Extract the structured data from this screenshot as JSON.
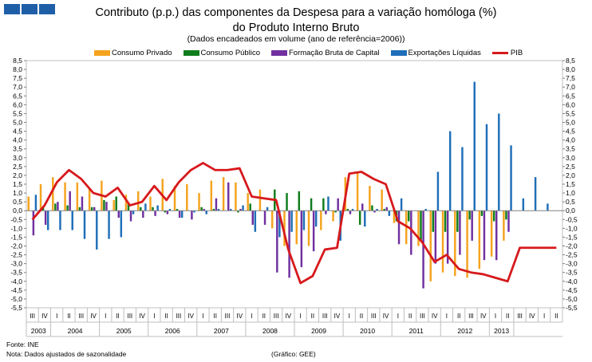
{
  "header": {
    "title_line1": "Contributo (p.p.) das componentes da Despesa para a variação homóloga  (%)",
    "title_line2": "do Produto Interno Bruto",
    "subtitle": "(Dados encadeados em volume  (ano de referência=2006))"
  },
  "footer": {
    "source": "Fonte:  INE",
    "note": "Nota:  Dados  ajustados  de sazonalidade",
    "credit": "(Gráfico:  GEE)"
  },
  "chart_data": {
    "type": "bar",
    "title": "Contributo (p.p.) das componentes da Despesa para a variação homóloga  (%)",
    "ylim": [
      -5.5,
      8.5
    ],
    "yticks": [
      "8,5",
      "8,0",
      "7,5",
      "7,0",
      "6,5",
      "6,0",
      "5,5",
      "5,0",
      "4,5",
      "4,0",
      "3,5",
      "3,0",
      "2,5",
      "2,0",
      "1,5",
      "1,0",
      "0,5",
      "0,0",
      "-0,5",
      "-1,0",
      "-1,5",
      "-2,0",
      "-2,5",
      "-3,0",
      "-3,5",
      "-4,0",
      "-4,5",
      "-5,0",
      "-5,5"
    ],
    "categories": [
      "III",
      "IV",
      "I",
      "II",
      "III",
      "IV",
      "I",
      "II",
      "III",
      "IV",
      "I",
      "II",
      "III",
      "IV",
      "I",
      "II",
      "III",
      "IV",
      "I",
      "II",
      "III",
      "IV",
      "I",
      "II",
      "III",
      "IV",
      "I",
      "II",
      "III",
      "IV",
      "I",
      "II",
      "III",
      "IV",
      "I",
      "II",
      "III",
      "IV",
      "I",
      "II",
      "III",
      "IV",
      "I",
      "II"
    ],
    "years": [
      {
        "label": "2003",
        "quarters": 2
      },
      {
        "label": "2004",
        "quarters": 4
      },
      {
        "label": "2005",
        "quarters": 4
      },
      {
        "label": "2006",
        "quarters": 4
      },
      {
        "label": "2007",
        "quarters": 4
      },
      {
        "label": "2008",
        "quarters": 4
      },
      {
        "label": "2009",
        "quarters": 4
      },
      {
        "label": "2010",
        "quarters": 4
      },
      {
        "label": "2011",
        "quarters": 4
      },
      {
        "label": "2012",
        "quarters": 4
      },
      {
        "label": "2013",
        "quarters": 2
      }
    ],
    "series": [
      {
        "name": "Consumo Privado",
        "color": "#f5a31e",
        "values": [
          0.8,
          1.5,
          1.9,
          1.6,
          1.6,
          1.3,
          1.7,
          0.6,
          0.9,
          1.1,
          0.8,
          1.8,
          1.4,
          1.5,
          1.0,
          1.7,
          1.9,
          1.6,
          1.0,
          1.2,
          -1.0,
          -2.0,
          -1.9,
          -2.0,
          -1.1,
          -0.6,
          1.9,
          2.2,
          1.4,
          1.2,
          -0.7,
          -1.9,
          -2.0,
          -4.0,
          -3.5,
          -3.7,
          -3.8,
          -3.3,
          -2.6,
          -1.7,
          0.0,
          0.0,
          0.0,
          0.0
        ]
      },
      {
        "name": "Consumo Público",
        "color": "#0f7d1c",
        "values": [
          0.0,
          0.2,
          0.4,
          0.3,
          0.2,
          0.2,
          0.6,
          0.8,
          0.4,
          0.2,
          0.2,
          -0.1,
          0.1,
          0.0,
          0.2,
          0.1,
          0.0,
          -0.1,
          0.4,
          0.0,
          1.2,
          1.0,
          1.1,
          0.7,
          0.7,
          -0.1,
          0.1,
          -0.8,
          0.3,
          0.1,
          -0.6,
          -0.6,
          -1.7,
          -1.2,
          -1.2,
          -1.2,
          -0.5,
          -0.3,
          -0.6,
          -0.5,
          0.0,
          0.0,
          0.0,
          0.0
        ]
      },
      {
        "name": "Formação Bruta de Capital",
        "color": "#7030a0",
        "values": [
          -1.4,
          -0.8,
          0.5,
          1.1,
          0.8,
          0.2,
          0.5,
          -0.4,
          -0.6,
          -0.4,
          -0.3,
          -0.2,
          -0.4,
          -0.5,
          0.1,
          0.7,
          1.6,
          0.1,
          -0.8,
          -0.8,
          -3.5,
          -3.8,
          -3.2,
          -2.3,
          -0.2,
          0.7,
          -0.2,
          0.4,
          -0.1,
          0.2,
          -1.9,
          -2.5,
          -4.4,
          -3.0,
          -3.0,
          -2.5,
          -1.7,
          -2.8,
          -2.8,
          -1.2,
          0.0,
          0.0,
          0.0,
          0.0
        ]
      },
      {
        "name": "Exportações Líquidas",
        "color": "#1f6fb8",
        "values": [
          0.9,
          -1.1,
          -1.1,
          -1.1,
          -1.6,
          -2.2,
          -1.6,
          -1.5,
          -0.2,
          0.4,
          0.3,
          0.1,
          -0.4,
          -0.1,
          -0.2,
          0.1,
          0.1,
          0.3,
          -1.2,
          0.2,
          -1.5,
          -1.2,
          -1.1,
          -0.9,
          0.8,
          -1.7,
          0.1,
          -0.9,
          0.1,
          -0.3,
          0.7,
          0.0,
          0.1,
          2.2,
          4.5,
          3.6,
          7.3,
          4.9,
          5.5,
          3.7,
          0.7,
          1.9,
          0.4,
          0.0
        ]
      }
    ],
    "line_series": {
      "name": "PIB",
      "color": "#d7191c",
      "values": [
        -0.5,
        0.3,
        1.6,
        2.3,
        1.8,
        1.0,
        0.8,
        1.3,
        0.3,
        0.5,
        1.4,
        0.6,
        1.6,
        2.3,
        2.7,
        2.3,
        2.3,
        2.4,
        0.8,
        0.7,
        0.6,
        -2.2,
        -4.1,
        -3.7,
        -2.2,
        -2.1,
        2.1,
        2.2,
        1.8,
        1.5,
        -0.6,
        -1.0,
        -1.8,
        -2.9,
        -2.5,
        -3.3,
        -3.5,
        -3.6,
        -3.8,
        -4.0,
        -2.1,
        -2.1,
        -2.1,
        -2.1
      ]
    }
  }
}
